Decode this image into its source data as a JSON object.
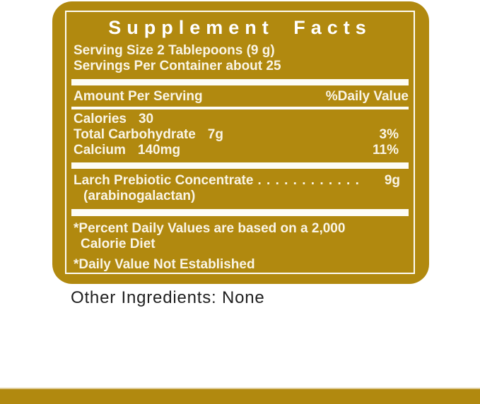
{
  "colors": {
    "gold": "#B1890F",
    "cream": "#FAF5E6",
    "bar": "#FDFCF6",
    "ink": "#1F1F1F",
    "strip_edge": "#DECB96"
  },
  "panel": {
    "title": "Supplement Facts",
    "serving_size": "Serving Size 2 Tablepoons (9 g)",
    "servings_per_container": "Servings Per Container about 25",
    "header": {
      "left": "Amount Per Serving",
      "right": "%Daily Value"
    },
    "nutrients": [
      {
        "name": "Calories",
        "amount": "30",
        "dv": ""
      },
      {
        "name": "Total Carbohydrate",
        "amount": "7g",
        "dv": "3%"
      },
      {
        "name": "Calcium",
        "amount": "140mg",
        "dv": "11%"
      }
    ],
    "ingredient": {
      "name": "Larch Prebiotic Concentrate",
      "leader": ". . . . . . . . . . . .",
      "amount": "9g",
      "sub": "(arabinogalactan)"
    },
    "footnotes": {
      "percent_daily_line1": "*Percent Daily Values are based on a 2,000",
      "percent_daily_line2": "Calorie Diet",
      "daily_value": "*Daily Value Not Established"
    }
  },
  "other_ingredients": "Other Ingredients: None"
}
